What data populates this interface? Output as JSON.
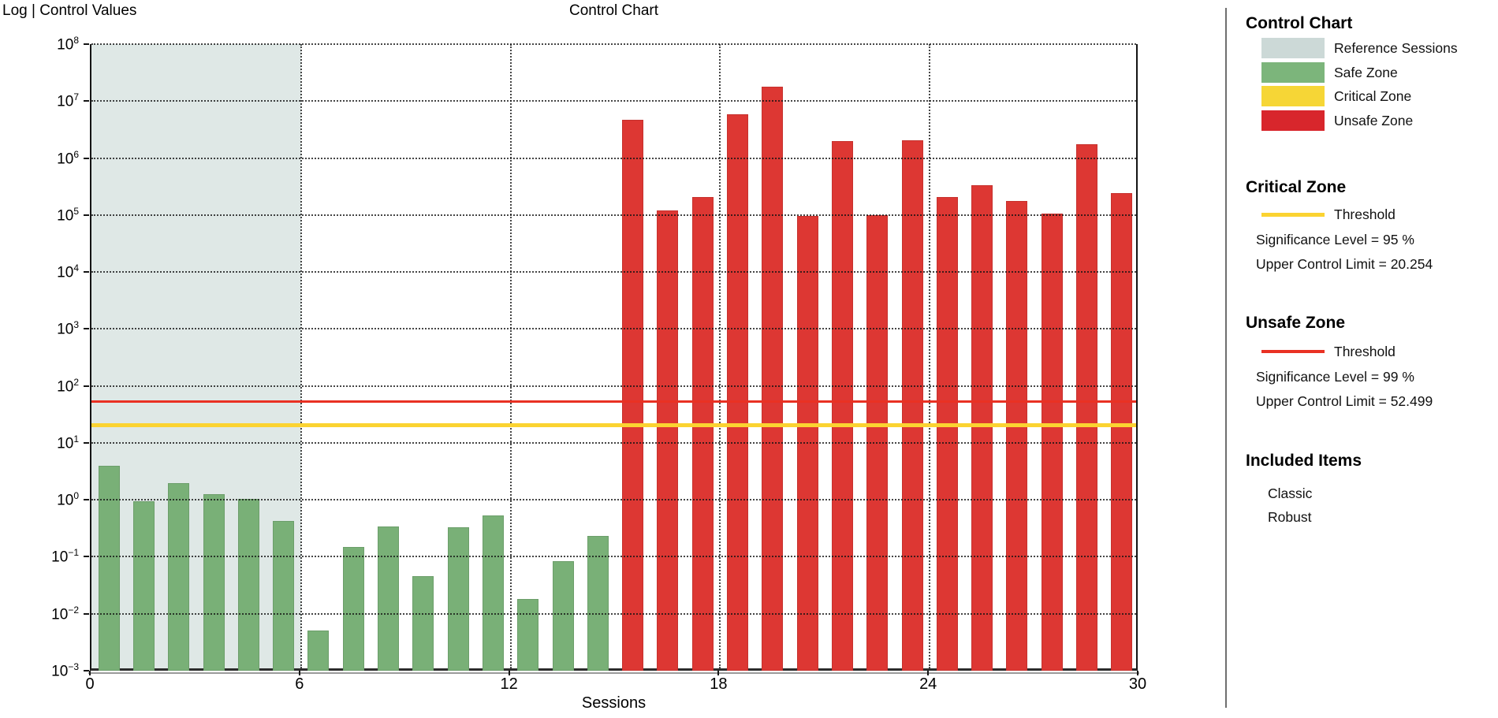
{
  "page": {
    "y_axis_top_title": "Log | Control Values",
    "chart_top_title": "Control Chart"
  },
  "chart_data": {
    "type": "bar",
    "title": "Control Chart",
    "xlabel": "Sessions",
    "ylabel": "Log | Control Values",
    "y_scale": "log10",
    "ylim": [
      0.001,
      100000000.0
    ],
    "y_tick_exponents": [
      8,
      7,
      6,
      5,
      4,
      3,
      2,
      1,
      0,
      -1,
      -2,
      -3
    ],
    "xlim": [
      0,
      30
    ],
    "x_ticks": [
      0,
      6,
      12,
      18,
      24,
      30
    ],
    "x_gridlines": [
      6,
      12,
      18,
      24
    ],
    "grid": true,
    "legend_position": "right",
    "reference_region": {
      "label": "Reference Sessions",
      "x_start": 0,
      "x_end": 6
    },
    "thresholds": [
      {
        "name": "critical-threshold",
        "label": "Critical Zone Threshold",
        "value": 20.254,
        "color": "#fbd331",
        "thickness": 5
      },
      {
        "name": "unsafe-threshold",
        "label": "Unsafe Zone Threshold",
        "value": 52.499,
        "color": "#e93123",
        "thickness": 3
      }
    ],
    "bars": {
      "x_centers": [
        0.5,
        1.5,
        2.5,
        3.5,
        4.5,
        5.5,
        6.5,
        7.5,
        8.5,
        9.5,
        10.5,
        11.5,
        12.5,
        13.5,
        14.5,
        15.5,
        16.5,
        17.5,
        18.5,
        19.5,
        20.5,
        21.5,
        22.5,
        23.5,
        24.5,
        25.5,
        26.5,
        27.5,
        28.5,
        29.5
      ],
      "values": [
        3.9,
        0.95,
        1.95,
        1.25,
        1.05,
        0.42,
        0.005,
        0.15,
        0.34,
        0.046,
        0.33,
        0.53,
        0.018,
        0.083,
        0.23,
        4700000,
        120000,
        210000,
        5900000,
        18000000,
        95000,
        2000000,
        100000,
        2050000,
        210000,
        330000,
        175000,
        105000,
        1750000,
        240000
      ],
      "zones": [
        "safe",
        "safe",
        "safe",
        "safe",
        "safe",
        "safe",
        "safe",
        "safe",
        "safe",
        "safe",
        "safe",
        "safe",
        "safe",
        "safe",
        "safe",
        "unsafe",
        "unsafe",
        "unsafe",
        "unsafe",
        "unsafe",
        "unsafe",
        "unsafe",
        "unsafe",
        "unsafe",
        "unsafe",
        "unsafe",
        "unsafe",
        "unsafe",
        "unsafe",
        "unsafe"
      ]
    }
  },
  "colors": {
    "safe_bar": "#79b077",
    "unsafe_bar": "#dd3733",
    "reference_fill": "#dfe8e6",
    "critical_line": "#fbd331",
    "unsafe_line": "#e93123",
    "legend_reference": "#ccd9d7",
    "legend_safe": "#7cb57b",
    "legend_critical": "#f6d636",
    "legend_unsafe": "#d8262c",
    "axis": "#141414"
  },
  "legend": {
    "title": "Control Chart",
    "items": [
      {
        "label": "Reference Sessions"
      },
      {
        "label": "Safe Zone"
      },
      {
        "label": "Critical Zone"
      },
      {
        "label": "Unsafe Zone"
      }
    ],
    "critical_section": {
      "title": "Critical Zone",
      "threshold_label": "Threshold",
      "significance": "Significance Level = 95 %",
      "ucl": "Upper Control Limit = 20.254"
    },
    "unsafe_section": {
      "title": "Unsafe Zone",
      "threshold_label": "Threshold",
      "significance": "Significance Level = 99 %",
      "ucl": "Upper Control Limit = 52.499"
    },
    "included_section": {
      "title": "Included Items",
      "items": [
        "Classic",
        "Robust"
      ]
    }
  }
}
